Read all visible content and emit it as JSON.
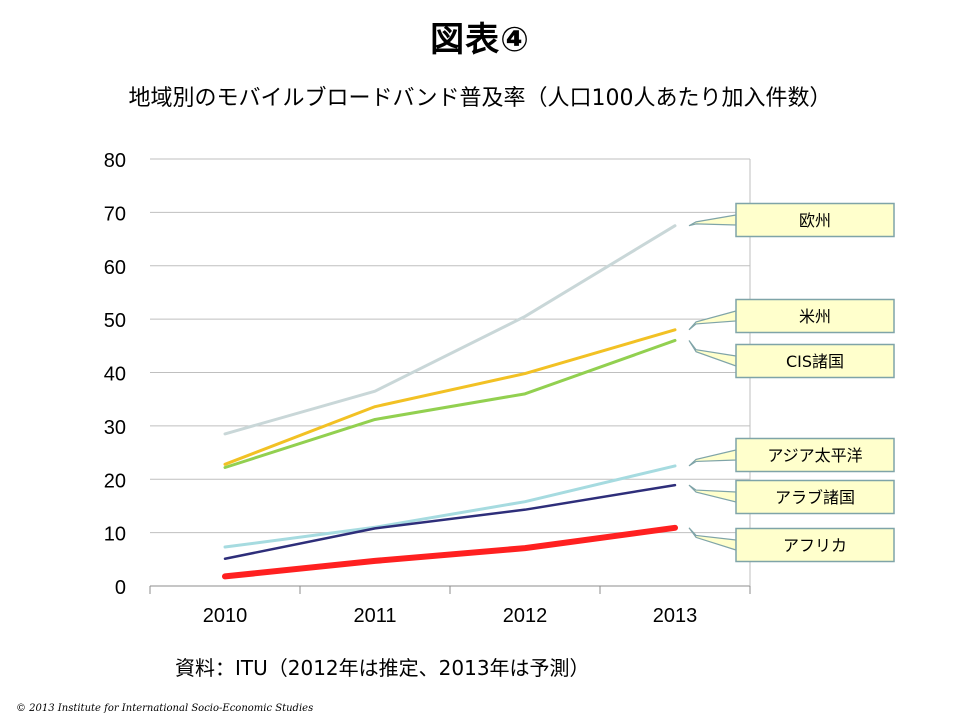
{
  "slide": {
    "title": "図表④",
    "subtitle": "地域別のモバイルブロードバンド普及率（人口100人あたり加入件数）",
    "source": "資料：ITU（2012年は推定、2013年は予測）",
    "copyright": "© 2013 Institute for International Socio-Economic Studies"
  },
  "chart_data": {
    "type": "line",
    "title": "地域別のモバイルブロードバンド普及率（人口100人あたり加入件数）",
    "xlabel": "",
    "ylabel": "",
    "categories": [
      "2010",
      "2011",
      "2012",
      "2013"
    ],
    "ylim": [
      0,
      80
    ],
    "yticks": [
      0,
      10,
      20,
      30,
      40,
      50,
      60,
      70,
      80
    ],
    "grid": true,
    "legend": "callouts-right",
    "series": [
      {
        "name": "欧州",
        "values": [
          28.5,
          36.5,
          50.5,
          67.5
        ],
        "color": "#c9d7d8",
        "width": 3,
        "callout": 220
      },
      {
        "name": "米州",
        "values": [
          22.8,
          33.6,
          39.8,
          48.0
        ],
        "color": "#f2c124",
        "width": 3,
        "callout": 316
      },
      {
        "name": "CIS諸国",
        "values": [
          22.2,
          31.2,
          36.0,
          46.0
        ],
        "color": "#92d050",
        "width": 3,
        "callout": 361
      },
      {
        "name": "アジア太平洋",
        "values": [
          7.3,
          11.0,
          15.8,
          22.5
        ],
        "color": "#a6dbe0",
        "width": 3,
        "callout": 455
      },
      {
        "name": "アラブ諸国",
        "values": [
          5.1,
          10.8,
          14.3,
          18.9
        ],
        "color": "#2e2e7a",
        "width": 2.5,
        "callout": 497
      },
      {
        "name": "アフリカ",
        "values": [
          1.8,
          4.7,
          7.1,
          10.9
        ],
        "color": "#ff2020",
        "width": 6,
        "callout": 545
      }
    ]
  }
}
